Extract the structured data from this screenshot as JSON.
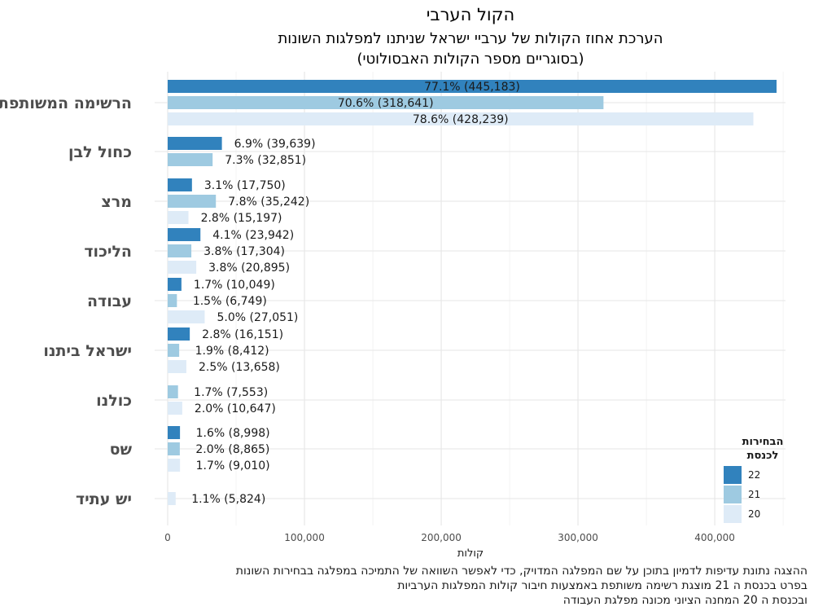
{
  "chart_data": {
    "type": "bar",
    "orientation": "horizontal",
    "title": "הקול הערבי",
    "subtitle": [
      "הערכת אחוז הקולות של ערביי ישראל שניתנו למפלגות השונות",
      "(בסוגריים מספר הקולות האבסולוטי)"
    ],
    "xlabel": "קולות",
    "xlim": [
      0,
      460000
    ],
    "xticks": [
      0,
      100000,
      200000,
      300000,
      400000
    ],
    "xtick_labels": [
      "0",
      "100,000",
      "200,000",
      "300,000",
      "400,000"
    ],
    "grid": true,
    "legend": {
      "title": [
        "הבחירות",
        "לכנסת"
      ],
      "position": "bottom-right",
      "entries": [
        "22",
        "21",
        "20"
      ]
    },
    "colors": {
      "22": "#3182bd",
      "21": "#9ecae1",
      "20": "#deebf7"
    },
    "categories": [
      "הרשימה המשותפת",
      "כחול לבן",
      "מרצ",
      "הליכוד",
      "עבודה",
      "ישראל ביתנו",
      "כולנו",
      "שס",
      "יש עתיד"
    ],
    "series": [
      {
        "name": "22",
        "values": [
          445183,
          39639,
          17750,
          23942,
          10049,
          16151,
          null,
          8998,
          null
        ],
        "labels": [
          "77.1% (445,183)",
          "6.9% (39,639)",
          "3.1% (17,750)",
          "4.1% (23,942)",
          "1.7% (10,049)",
          "2.8% (16,151)",
          null,
          "1.6% (8,998)",
          null
        ]
      },
      {
        "name": "21",
        "values": [
          318641,
          32851,
          35242,
          17304,
          6749,
          8412,
          7553,
          8865,
          null
        ],
        "labels": [
          "70.6% (318,641)",
          "7.3% (32,851)",
          "7.8% (35,242)",
          "3.8% (17,304)",
          "1.5% (6,749)",
          "1.9% (8,412)",
          "1.7% (7,553)",
          "2.0% (8,865)",
          null
        ]
      },
      {
        "name": "20",
        "values": [
          428239,
          null,
          15197,
          20895,
          27051,
          13658,
          10647,
          9010,
          5824
        ],
        "labels": [
          "78.6% (428,239)",
          null,
          "2.8% (15,197)",
          "3.8% (20,895)",
          "5.0% (27,051)",
          "2.5% (13,658)",
          "2.0% (10,647)",
          "1.7% (9,010)",
          "1.1% (5,824)"
        ]
      }
    ],
    "caption": [
      "ההצגה נתונת עדיפות לדמיון בתוכן על שם המפלגה המדויק, כדי לאפשר השוואה של התמיכה במפלגה בבחירות השונות",
      "בפרט בכנסת ה 21 מוצגת רשימה משותפת באמצעות חיבור קולות המפלגות הערביות",
      "ובכנסת ה 20 המחנה הציוני מכונה מפלגת העבודה"
    ]
  }
}
